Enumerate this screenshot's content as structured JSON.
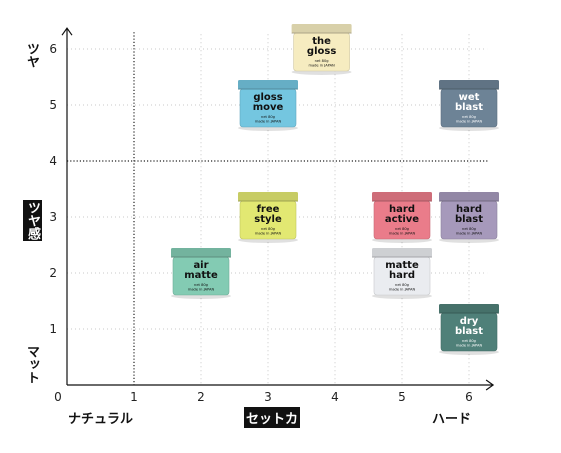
{
  "chart_data": {
    "type": "scatter",
    "title": "",
    "xlabel": "セットカ",
    "ylabel": "ツヤ感",
    "x_ticks": [
      "0",
      "1",
      "2",
      "3",
      "4",
      "5",
      "6"
    ],
    "y_ticks": [
      "1",
      "2",
      "3",
      "4",
      "5",
      "6"
    ],
    "xlim": [
      0,
      6.3
    ],
    "ylim": [
      0,
      6.3
    ],
    "x_axis_labels": {
      "left": "ナチュラル",
      "center": "セットカ",
      "right": "ハード"
    },
    "y_axis_labels": {
      "top": "ツヤ",
      "center": "ツヤ感",
      "bottom": "マット"
    },
    "reference_lines": {
      "x": 1,
      "y": 4
    },
    "grid": true,
    "points": [
      {
        "label": "the\ngloss",
        "x": 3.8,
        "y": 6,
        "color": "#f6ecc0"
      },
      {
        "label": "gloss\nmove",
        "x": 3.0,
        "y": 5,
        "color": "#74c6e0"
      },
      {
        "label": "wet\nblast",
        "x": 6.0,
        "y": 5,
        "color": "#6d8396"
      },
      {
        "label": "free\nstyle",
        "x": 3.0,
        "y": 3,
        "color": "#e2e872"
      },
      {
        "label": "hard\nactive",
        "x": 5.0,
        "y": 3,
        "color": "#ea7c8a"
      },
      {
        "label": "hard\nblast",
        "x": 6.0,
        "y": 3,
        "color": "#a699bb"
      },
      {
        "label": "air\nmatte",
        "x": 2.0,
        "y": 2,
        "color": "#83cbb3"
      },
      {
        "label": "matte\nhard",
        "x": 5.0,
        "y": 2,
        "color": "#eaecf0"
      },
      {
        "label": "dry\nblast",
        "x": 6.0,
        "y": 1,
        "color": "#4f8079"
      }
    ],
    "jar_fine_print": "net 80g\nmade in JAPAN"
  }
}
